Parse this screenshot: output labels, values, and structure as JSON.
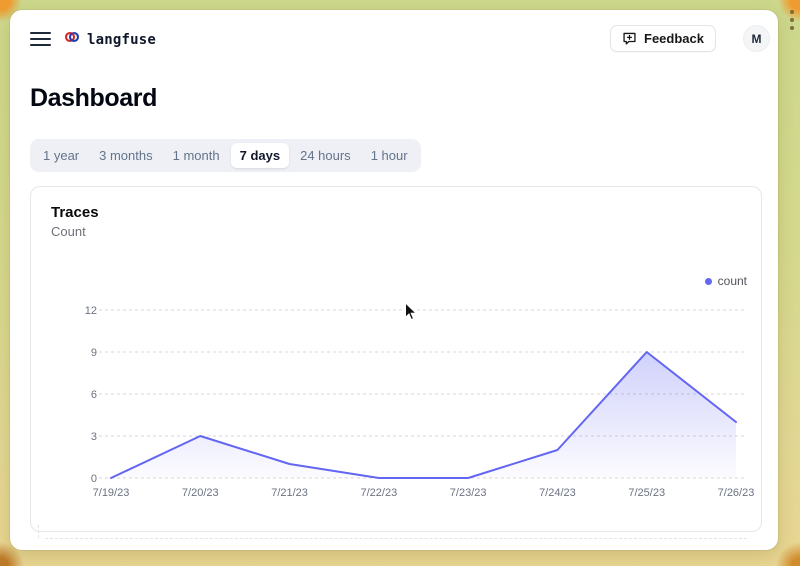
{
  "header": {
    "brand": "langfuse",
    "feedback_label": "Feedback",
    "avatar_initial": "M"
  },
  "page": {
    "title": "Dashboard"
  },
  "tabs": {
    "items": [
      {
        "label": "1 year",
        "active": false
      },
      {
        "label": "3 months",
        "active": false
      },
      {
        "label": "1 month",
        "active": false
      },
      {
        "label": "7 days",
        "active": true
      },
      {
        "label": "24 hours",
        "active": false
      },
      {
        "label": "1 hour",
        "active": false
      }
    ]
  },
  "card": {
    "title": "Traces",
    "subtitle": "Count"
  },
  "chart_data": {
    "type": "area",
    "title": "Traces",
    "subtitle": "Count",
    "x": [
      "7/19/23",
      "7/20/23",
      "7/21/23",
      "7/22/23",
      "7/23/23",
      "7/24/23",
      "7/25/23",
      "7/26/23"
    ],
    "series": [
      {
        "name": "count",
        "values": [
          0,
          3,
          1,
          0,
          0,
          2,
          9,
          4
        ]
      }
    ],
    "xlabel": "",
    "ylabel": "",
    "ylim": [
      0,
      12
    ],
    "yticks": [
      0,
      3,
      6,
      9,
      12
    ],
    "legend": [
      "count"
    ],
    "legend_position": "top-right",
    "grid": "horizontal-dashed",
    "colors": {
      "line": "#6366f1",
      "area_top": "rgba(99,102,241,0.30)",
      "area_bottom": "rgba(99,102,241,0.02)",
      "gridline": "#d4d4d8",
      "tick_text": "#6b7280",
      "legend_text": "#52525b"
    }
  }
}
